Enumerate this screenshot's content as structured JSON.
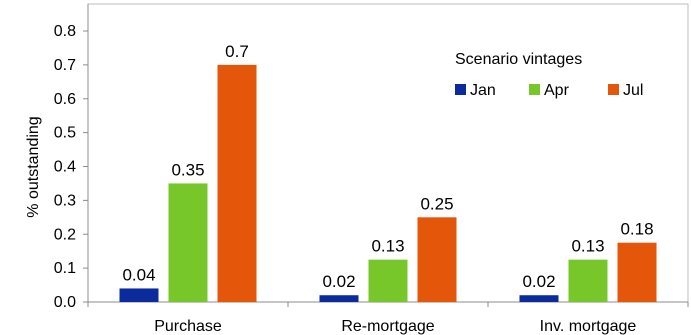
{
  "chart_data": {
    "type": "bar",
    "categories": [
      "Purchase",
      "Re-mortgage",
      "Inv. mortgage"
    ],
    "series": [
      {
        "name": "Jan",
        "color": "#0b2a9c",
        "values": [
          0.04,
          0.02,
          0.02
        ],
        "labels": [
          "0.04",
          "0.02",
          "0.02"
        ]
      },
      {
        "name": "Apr",
        "color": "#77c72a",
        "values": [
          0.35,
          0.125,
          0.125
        ],
        "labels": [
          "0.35",
          "0.13",
          "0.13"
        ]
      },
      {
        "name": "Jul",
        "color": "#e4560a",
        "values": [
          0.7,
          0.25,
          0.175
        ],
        "labels": [
          "0.7",
          "0.25",
          "0.18"
        ]
      }
    ],
    "ylabel": "% outstanding",
    "ylim": [
      0,
      0.8
    ],
    "yticks": [
      0,
      0.1,
      0.2,
      0.3,
      0.4,
      0.5,
      0.6,
      0.7,
      0.8
    ],
    "ytick_labels": [
      "0.0",
      "0.1",
      "0.2",
      "0.3",
      "0.4",
      "0.5",
      "0.6",
      "0.7",
      "0.8"
    ],
    "legend_title": "Scenario vintages",
    "legend_position": "top-right",
    "grid": false
  }
}
